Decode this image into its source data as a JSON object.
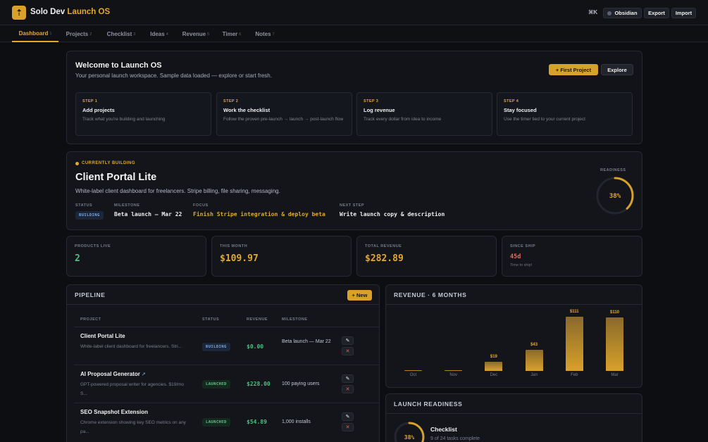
{
  "app": {
    "brand_main": "Solo Dev",
    "brand_accent": "Launch OS",
    "logo_icon": "arrow-up-icon"
  },
  "topbar": {
    "shortcut": "⌘K",
    "obsidian": "Obsidian",
    "export": "Export",
    "import": "Import"
  },
  "nav": [
    {
      "label": "Dashboard",
      "shortcut": "1"
    },
    {
      "label": "Projects",
      "shortcut": "2"
    },
    {
      "label": "Checklist",
      "shortcut": "3"
    },
    {
      "label": "Ideas",
      "shortcut": "4"
    },
    {
      "label": "Revenue",
      "shortcut": "5"
    },
    {
      "label": "Timer",
      "shortcut": "6"
    },
    {
      "label": "Notes",
      "shortcut": "7"
    }
  ],
  "welcome": {
    "title": "Welcome to Launch OS",
    "subtitle": "Your personal launch workspace. Sample data loaded — explore or start fresh.",
    "primary": "+ First Project",
    "secondary": "Explore",
    "steps": [
      {
        "label": "STEP 1",
        "title": "Add projects",
        "desc": "Track what you're building and launching"
      },
      {
        "label": "STEP 2",
        "title": "Work the checklist",
        "desc": "Follow the proven pre-launch → launch → post-launch flow"
      },
      {
        "label": "STEP 3",
        "title": "Log revenue",
        "desc": "Track every dollar from idea to income"
      },
      {
        "label": "STEP 4",
        "title": "Stay focused",
        "desc": "Use the timer tied to your current project"
      }
    ]
  },
  "current": {
    "tag": "CURRENTLY BUILDING",
    "title": "Client Portal Lite",
    "desc": "White-label client dashboard for freelancers. Stripe billing, file sharing, messaging.",
    "status_label": "STATUS",
    "status": "BUILDING",
    "milestone_label": "MILESTONE",
    "milestone": "Beta launch — Mar 22",
    "focus_label": "FOCUS",
    "focus": "Finish Stripe integration & deploy beta",
    "next_label": "NEXT STEP",
    "next": "Write launch copy & description",
    "readiness_label": "READINESS",
    "readiness": "38%",
    "readiness_value": 0.38
  },
  "stats": {
    "live_label": "PRODUCTS LIVE",
    "live": "2",
    "month_label": "THIS MONTH",
    "month": "$109.97",
    "total_label": "TOTAL REVENUE",
    "total": "$282.89",
    "ship_label": "SINCE SHIP",
    "ship": "45d",
    "ship_note": "Time to ship!"
  },
  "pipeline": {
    "title": "PIPELINE",
    "new": "+ New",
    "headers": {
      "project": "PROJECT",
      "status": "STATUS",
      "revenue": "REVENUE",
      "milestone": "MILESTONE"
    },
    "rows": [
      {
        "name": "Client Portal Lite",
        "ext": "",
        "desc": "White-label client dashboard for freelancers. Stri...",
        "status": "BUILDING",
        "revenue": "$0.00",
        "milestone": "Beta launch — Mar 22"
      },
      {
        "name": "AI Proposal Generator",
        "ext": "↗",
        "desc": "GPT-powered proposal writer for agencies. $19/mo S...",
        "status": "LAUNCHED",
        "revenue": "$228.00",
        "milestone": "100 paying users"
      },
      {
        "name": "SEO Snapshot Extension",
        "ext": "",
        "desc": "Chrome extension showing key SEO metrics on any pa...",
        "status": "LAUNCHED",
        "revenue": "$54.89",
        "milestone": "1,000 installs"
      }
    ],
    "edit_icon": "pencil-icon",
    "delete_icon": "close-icon"
  },
  "revenue_chart": {
    "title": "REVENUE · 6 MONTHS"
  },
  "chart_data": {
    "type": "bar",
    "title": "REVENUE · 6 MONTHS",
    "categories": [
      "Oct",
      "Nov",
      "Dec",
      "Jan",
      "Feb",
      "Mar"
    ],
    "values": [
      0,
      0,
      19,
      43,
      111,
      110
    ],
    "data_labels": [
      "",
      "",
      "$19",
      "$43",
      "$111",
      "$110"
    ],
    "xlabel": "",
    "ylabel": "",
    "grid": false,
    "color": "#d8a12a"
  },
  "readiness_panel": {
    "title": "LAUNCH READINESS",
    "pct": "38%",
    "pct_value": 0.38,
    "label": "Checklist",
    "sub": "9 of 24 tasks complete"
  },
  "colors": {
    "accent": "#e3a92b",
    "green": "#4fbf7f",
    "red": "#e56b5a",
    "blue": "#7fa6e0"
  }
}
